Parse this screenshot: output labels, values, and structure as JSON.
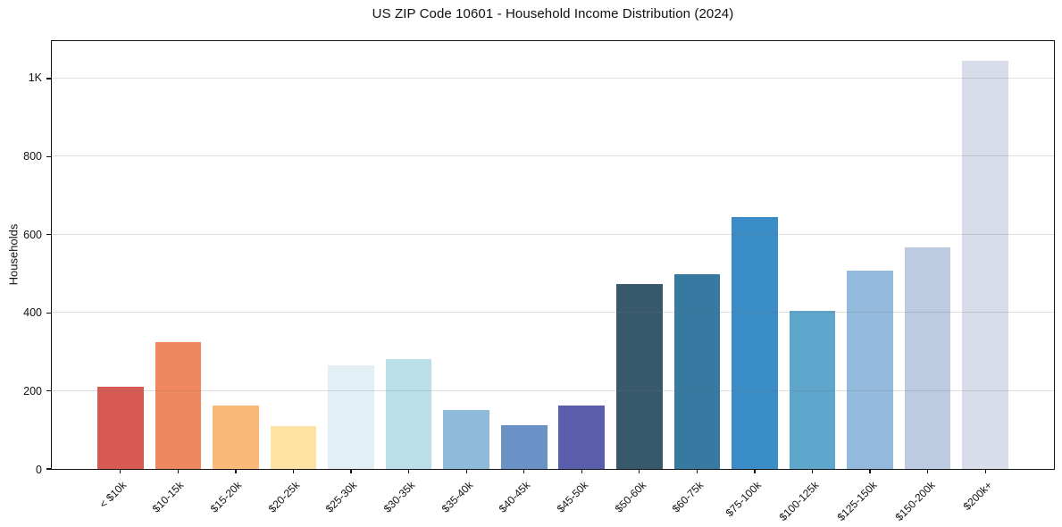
{
  "figure": {
    "title": "US ZIP Code 10601 - Household Income Distribution (2024)"
  },
  "chart_data": {
    "type": "bar",
    "title": "US ZIP Code 10601 - Household Income Distribution (2024)",
    "xlabel": "",
    "ylabel": "Households",
    "categories": [
      "< $10k",
      "$10-15k",
      "$15-20k",
      "$20-25k",
      "$25-30k",
      "$30-35k",
      "$35-40k",
      "$40-45k",
      "$45-50k",
      "$50-60k",
      "$60-75k",
      "$75-100k",
      "$100-125k",
      "$125-150k",
      "$150-200k",
      "$200k+"
    ],
    "values": [
      210,
      326,
      163,
      111,
      265,
      282,
      150,
      113,
      163,
      474,
      499,
      646,
      404,
      509,
      568,
      1045
    ],
    "bar_colors": [
      "#d75b52",
      "#ef875f",
      "#fab978",
      "#fde3a2",
      "#e2f0f6",
      "#bbdfe9",
      "#8fbbdb",
      "#6b92c7",
      "#5a5dac",
      "#38596c",
      "#3879a2",
      "#3a8dc6",
      "#5fa6cd",
      "#93badc",
      "#bccae2",
      "#d9dce9"
    ],
    "ylim": [
      0,
      1096
    ],
    "yticks": [
      {
        "value": 0,
        "label": "0"
      },
      {
        "value": 200,
        "label": "200"
      },
      {
        "value": 400,
        "label": "400"
      },
      {
        "value": 600,
        "label": "600"
      },
      {
        "value": 800,
        "label": "800"
      },
      {
        "value": 1000,
        "label": "1K"
      }
    ],
    "grid": "horizontal",
    "legend_position": "none",
    "bar_width_fraction": 0.8,
    "x_units_range": 17.38,
    "x_first_center": 1.19
  },
  "style": {
    "background": "#ffffff",
    "spine_color": "#141414",
    "grid_color": "#dfdfdf",
    "text_color": "#111111"
  }
}
